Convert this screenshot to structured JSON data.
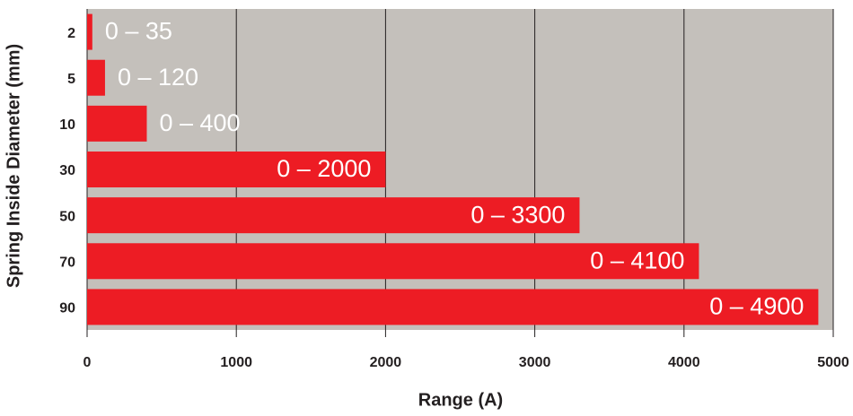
{
  "chart_data": {
    "type": "hbar",
    "x_label": "Range (A)",
    "y_label": "Spring Inside Diameter (mm)",
    "categories": [
      "2",
      "5",
      "10",
      "30",
      "50",
      "70",
      "90"
    ],
    "values": [
      35,
      120,
      400,
      2000,
      3300,
      4100,
      4900
    ],
    "value_labels": [
      "0 – 35",
      "0 – 120",
      "0 – 400",
      "0 – 2000",
      "0 – 3300",
      "0 – 4100",
      "0 – 4900"
    ],
    "color": "#ed1c24",
    "xlim": [
      0,
      5000
    ],
    "xticks": [
      0,
      1000,
      2000,
      3000,
      4000,
      5000
    ],
    "grid": true
  }
}
